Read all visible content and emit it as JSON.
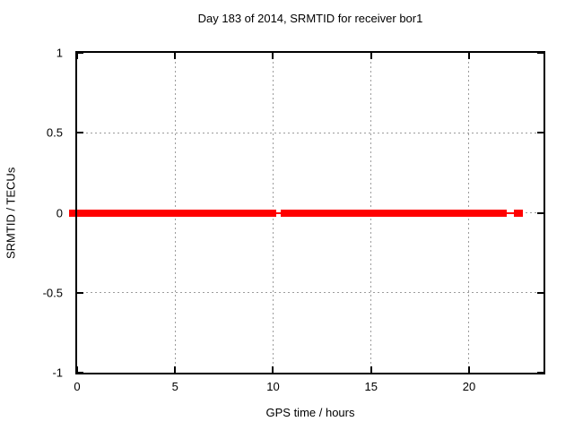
{
  "window": {
    "background": "#ffffff"
  },
  "chart_data": {
    "type": "line",
    "title": "Day 183 of 2014, SRMTID for receiver bor1",
    "xlabel": "GPS time / hours",
    "ylabel": "SRMTID / TECUs",
    "xlim": [
      0,
      23.8
    ],
    "ylim": [
      -1,
      1
    ],
    "grid": true,
    "legend_position": "none",
    "xticks": {
      "values": [
        0,
        5,
        10,
        15,
        20
      ],
      "labels": [
        "0",
        "5",
        "10",
        "15",
        "20"
      ]
    },
    "yticks": {
      "values": [
        1,
        0.5,
        0,
        -0.5,
        -1
      ],
      "labels": [
        "1",
        "0.5",
        "0",
        "-0.5",
        "-1"
      ]
    },
    "colors": {
      "series": "#ff0000",
      "grid": "#9c9c9c",
      "border": "#000000",
      "text": "#000000"
    },
    "series": [
      {
        "name": "SRMTID",
        "color": "#ff0000",
        "y_value": 0,
        "coverage_segments": [
          {
            "x_start": 0,
            "x_end": 10.14,
            "style": "thick"
          },
          {
            "x_start": 10.14,
            "x_end": 10.41,
            "style": "thin"
          },
          {
            "x_start": 10.41,
            "x_end": 21.92,
            "style": "thick"
          },
          {
            "x_start": 21.92,
            "x_end": 22.27,
            "style": "thin"
          },
          {
            "x_start": 22.27,
            "x_end": 22.77,
            "style": "thick"
          }
        ]
      }
    ]
  }
}
